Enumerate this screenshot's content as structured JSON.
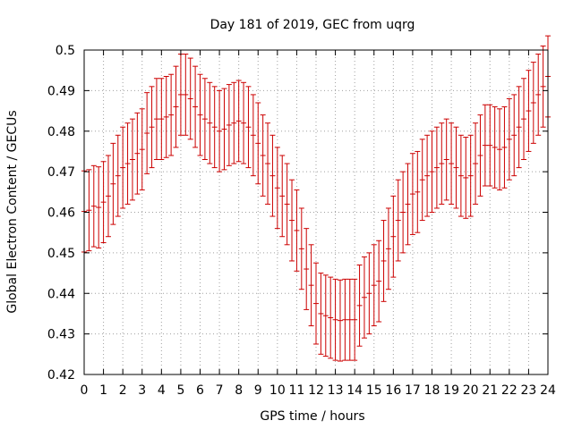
{
  "chart_data": {
    "type": "errorbar",
    "title": "Day 181 of 2019, GEC from uqrg",
    "xlabel": "GPS time / hours",
    "ylabel": "Global Electron Content / GECUs",
    "xlim": [
      0,
      24
    ],
    "ylim": [
      0.42,
      0.5
    ],
    "xticks": [
      "0",
      "1",
      "2",
      "3",
      "4",
      "5",
      "6",
      "7",
      "8",
      "9",
      "10",
      "11",
      "12",
      "13",
      "14",
      "15",
      "16",
      "17",
      "18",
      "19",
      "20",
      "21",
      "22",
      "23",
      "24"
    ],
    "yticks": [
      "0.42",
      "0.43",
      "0.44",
      "0.45",
      "0.46",
      "0.47",
      "0.48",
      "0.49",
      "0.5"
    ],
    "grid": true,
    "error": 0.01,
    "color": "#cc0000",
    "x": [
      0,
      0.25,
      0.5,
      0.75,
      1,
      1.25,
      1.5,
      1.75,
      2,
      2.25,
      2.5,
      2.75,
      3,
      3.25,
      3.5,
      3.75,
      4,
      4.25,
      4.5,
      4.75,
      5,
      5.25,
      5.5,
      5.75,
      6,
      6.25,
      6.5,
      6.75,
      7,
      7.25,
      7.5,
      7.75,
      8,
      8.25,
      8.5,
      8.75,
      9,
      9.25,
      9.5,
      9.75,
      10,
      10.25,
      10.5,
      10.75,
      11,
      11.25,
      11.5,
      11.75,
      12,
      12.25,
      12.5,
      12.75,
      13,
      13.25,
      13.5,
      13.75,
      14,
      14.25,
      14.5,
      14.75,
      15,
      15.25,
      15.5,
      15.75,
      16,
      16.25,
      16.5,
      16.75,
      17,
      17.25,
      17.5,
      17.75,
      18,
      18.25,
      18.5,
      18.75,
      19,
      19.25,
      19.5,
      19.75,
      20,
      20.25,
      20.5,
      20.75,
      21,
      21.25,
      21.5,
      21.75,
      22,
      22.25,
      22.5,
      22.75,
      23,
      23.25,
      23.5,
      23.75,
      24
    ],
    "values": [
      0.4602,
      0.4605,
      0.4615,
      0.4612,
      0.4625,
      0.464,
      0.467,
      0.469,
      0.471,
      0.472,
      0.473,
      0.4745,
      0.4755,
      0.4795,
      0.481,
      0.483,
      0.483,
      0.4835,
      0.484,
      0.486,
      0.489,
      0.489,
      0.488,
      0.486,
      0.484,
      0.483,
      0.482,
      0.481,
      0.48,
      0.4805,
      0.4815,
      0.482,
      0.4825,
      0.482,
      0.481,
      0.479,
      0.477,
      0.474,
      0.472,
      0.469,
      0.466,
      0.464,
      0.462,
      0.458,
      0.4555,
      0.451,
      0.446,
      0.442,
      0.4375,
      0.435,
      0.4345,
      0.434,
      0.4335,
      0.4333,
      0.4335,
      0.4335,
      0.4335,
      0.437,
      0.439,
      0.44,
      0.442,
      0.443,
      0.448,
      0.451,
      0.454,
      0.458,
      0.46,
      0.462,
      0.4645,
      0.465,
      0.468,
      0.469,
      0.47,
      0.471,
      0.472,
      0.473,
      0.472,
      0.471,
      0.469,
      0.4685,
      0.469,
      0.472,
      0.474,
      0.4765,
      0.4765,
      0.476,
      0.4755,
      0.476,
      0.478,
      0.479,
      0.481,
      0.483,
      0.485,
      0.487,
      0.489,
      0.491,
      0.4935
    ]
  }
}
